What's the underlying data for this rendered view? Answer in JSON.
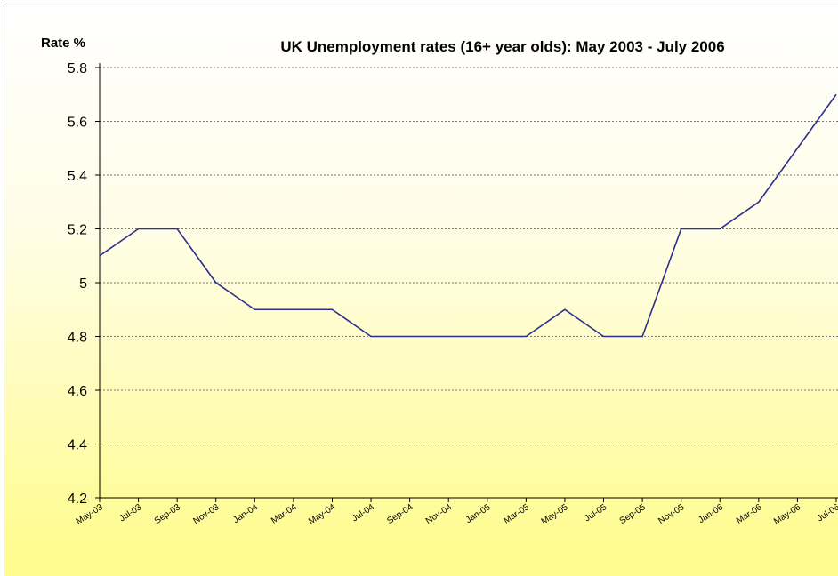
{
  "chart_data": {
    "type": "line",
    "title": "UK Unemployment rates (16+ year olds): May 2003 - July 2006",
    "ylabel": "Rate %",
    "xlabel": "",
    "ylim": [
      4.2,
      5.8
    ],
    "yticks": [
      "4.2",
      "4.4",
      "4.6",
      "4.8",
      "5",
      "5.2",
      "5.4",
      "5.6",
      "5.8"
    ],
    "grid": "horizontal dashed",
    "legend": "none",
    "line_color": "#2b2f8a",
    "categories": [
      "May-03",
      "Jul-03",
      "Sep-03",
      "Nov-03",
      "Jan-04",
      "Mar-04",
      "May-04",
      "Jul-04",
      "Sep-04",
      "Nov-04",
      "Jan-05",
      "Mar-05",
      "May-05",
      "Jul-05",
      "Sep-05",
      "Nov-05",
      "Jan-06",
      "Mar-06",
      "May-06",
      "Jul-06"
    ],
    "series": [
      {
        "values": [
          5.1,
          5.2,
          5.2,
          5.0,
          4.9,
          4.9,
          4.9,
          4.8,
          4.8,
          4.8,
          4.8,
          4.8,
          4.9,
          4.8,
          4.8,
          5.2,
          5.2,
          5.3,
          5.5,
          5.7
        ]
      }
    ]
  }
}
